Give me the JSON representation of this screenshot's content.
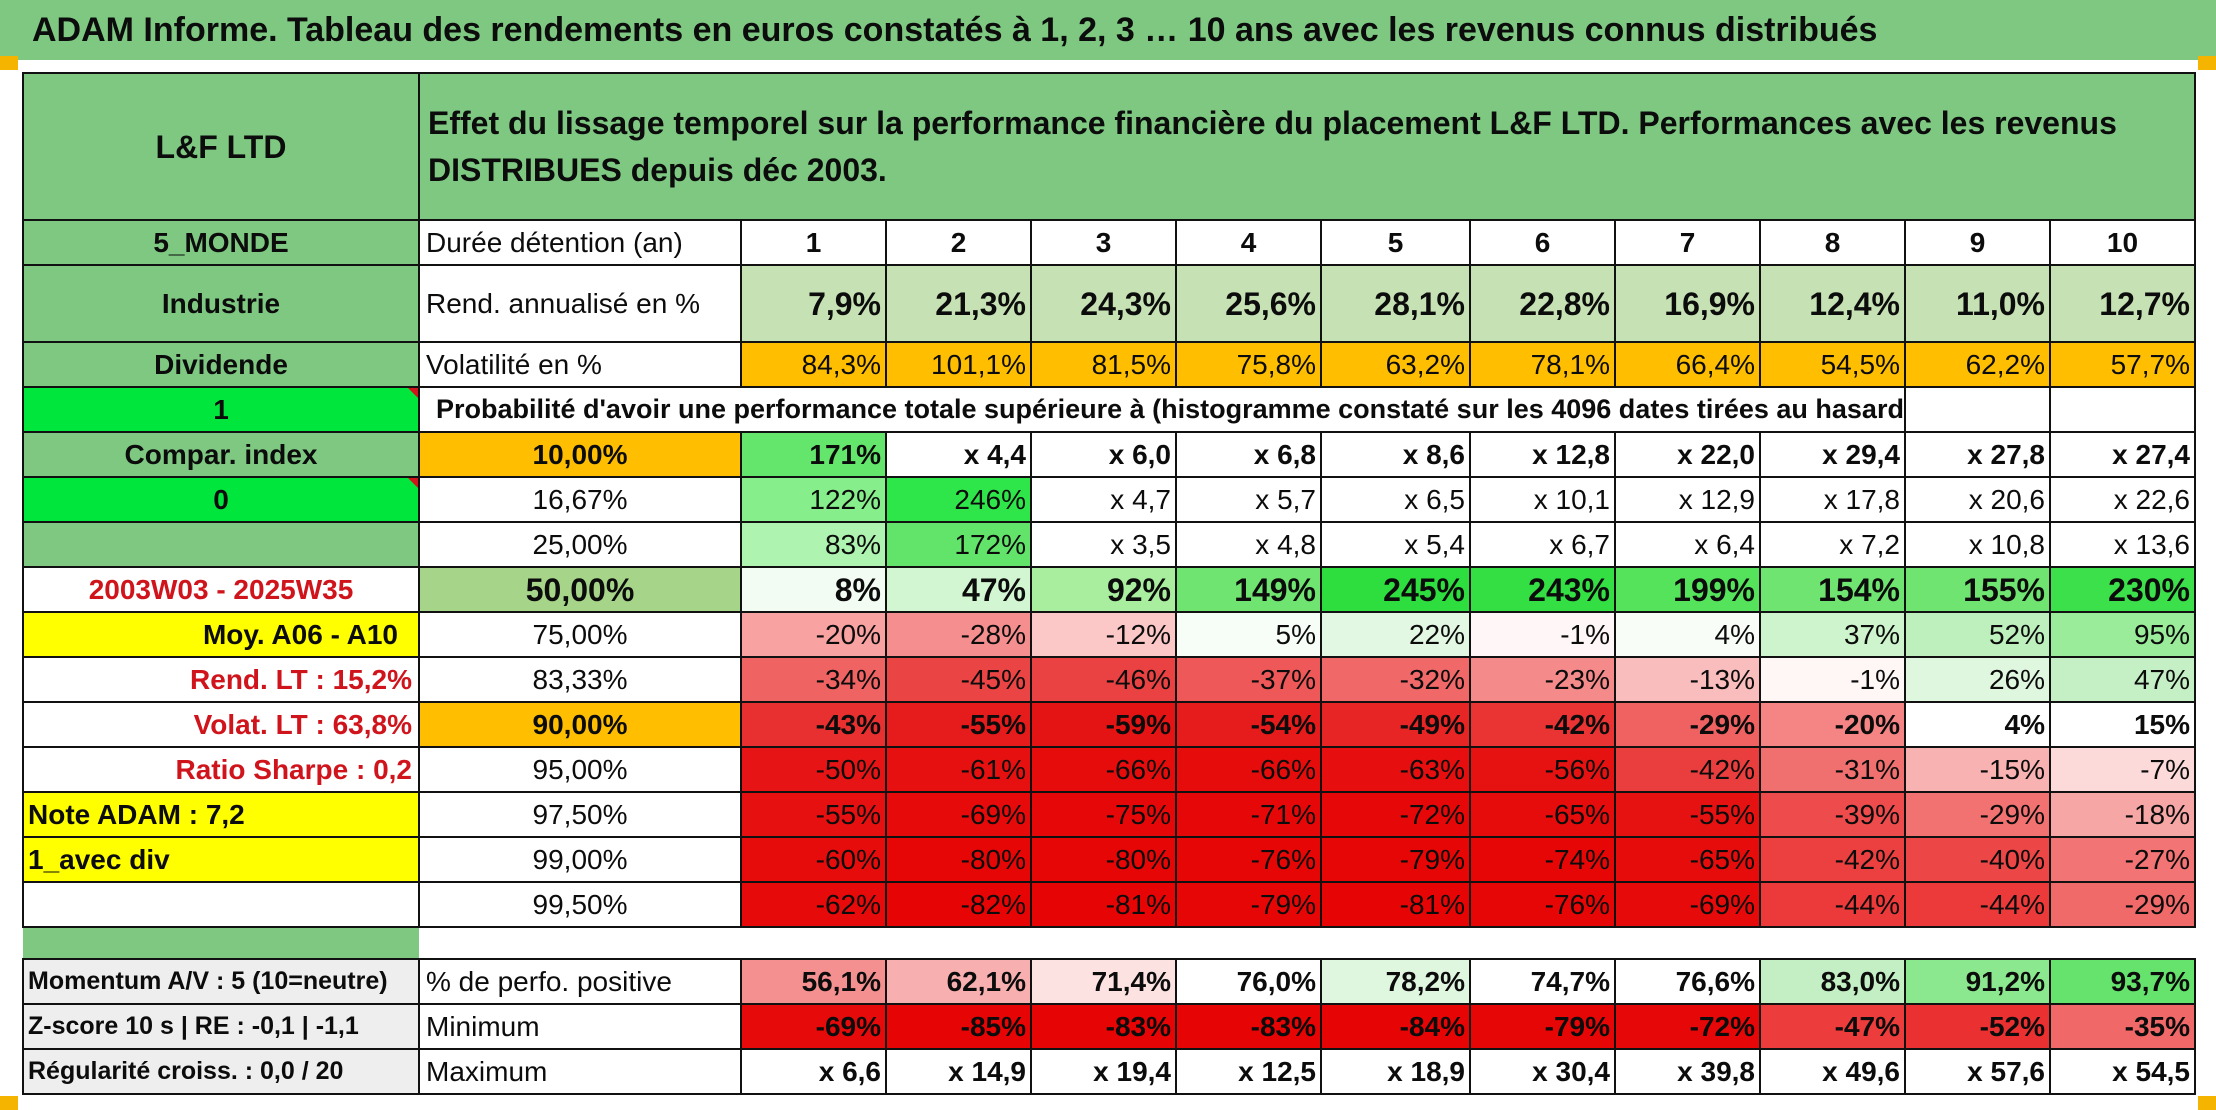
{
  "title": "ADAM Informe. Tableau des rendements en euros constatés à 1, 2, 3 … 10 ans avec les revenus connus distribués",
  "fund_name": "L&F LTD",
  "header_text": "Effet du lissage temporel sur la performance financière du placement L&F LTD. Performances avec les revenus DISTRIBUES depuis déc 2003.",
  "left": {
    "region": "5_MONDE",
    "sector": "Industrie",
    "dividend": "Dividende",
    "dividend_val": "1",
    "compar": "Compar. index",
    "compar_val": "0",
    "period": "2003W03 - 2025W35",
    "moy": "Moy. A06 - A10",
    "rend_lt": "Rend. LT :   15,2%",
    "volat_lt": "Volat. LT :   63,8%",
    "sharpe": "Ratio Sharpe :    0,2",
    "note": "Note ADAM : 7,2",
    "avec_div": "1_avec div",
    "momentum": "Momentum A/V : 5 (10=neutre)",
    "zscore": "Z-score 10 s | RE : -0,1 | -1,1",
    "regularite": "Régularité croiss. : 0,0 / 20"
  },
  "row_labels": {
    "duree": "Durée détention (an)",
    "rend": "Rend. annualisé en %",
    "vol": "Volatilité en %",
    "prob": "Probabilité d'avoir une performance totale supérieure à (histogramme constaté sur les 4096 dates tirées au hasard)",
    "pct_pos": "% de perfo. positive",
    "min": "Minimum",
    "max": "Maximum"
  },
  "years": [
    "1",
    "2",
    "3",
    "4",
    "5",
    "6",
    "7",
    "8",
    "9",
    "10"
  ],
  "rend": [
    "7,9%",
    "21,3%",
    "24,3%",
    "25,6%",
    "28,1%",
    "22,8%",
    "16,9%",
    "12,4%",
    "11,0%",
    "12,7%"
  ],
  "vol": [
    "84,3%",
    "101,1%",
    "81,5%",
    "75,8%",
    "63,2%",
    "78,1%",
    "66,4%",
    "54,5%",
    "62,2%",
    "57,7%"
  ],
  "vol_colors": [
    "#ffbf00",
    "#ffbf00",
    "#ffbf00",
    "#ffbf00",
    "#ffbf00",
    "#ffbf00",
    "#ffbf00",
    "#ffbf00",
    "#ffbf00",
    "#ffbf00"
  ],
  "rend_colors": [
    "#c6e2b4",
    "#c6e2b4",
    "#c6e2b4",
    "#c6e2b4",
    "#c6e2b4",
    "#c6e2b4",
    "#c6e2b4",
    "#c6e2b4",
    "#c6e2b4",
    "#c6e2b4"
  ],
  "quantile_rows": [
    {
      "label": "10,00%",
      "label_bg": "#ffbf00",
      "bold": true,
      "values": [
        "171%",
        "x 4,4",
        "x 6,0",
        "x 6,8",
        "x 8,6",
        "x 12,8",
        "x 22,0",
        "x 29,4",
        "x 27,8",
        "x 27,4"
      ],
      "colors": [
        "#63e66b",
        "#ffffff",
        "#ffffff",
        "#ffffff",
        "#ffffff",
        "#ffffff",
        "#ffffff",
        "#ffffff",
        "#ffffff",
        "#ffffff"
      ]
    },
    {
      "label": "16,67%",
      "label_bg": "#ffffff",
      "bold": false,
      "values": [
        "122%",
        "246%",
        "x 4,7",
        "x 5,7",
        "x 6,5",
        "x 10,1",
        "x 12,9",
        "x 17,8",
        "x 20,6",
        "x 22,6"
      ],
      "colors": [
        "#86ee8a",
        "#2ee64a",
        "#ffffff",
        "#ffffff",
        "#ffffff",
        "#ffffff",
        "#ffffff",
        "#ffffff",
        "#ffffff",
        "#ffffff"
      ]
    },
    {
      "label": "25,00%",
      "label_bg": "#ffffff",
      "bold": false,
      "values": [
        "83%",
        "172%",
        "x 3,5",
        "x 4,8",
        "x 5,4",
        "x 6,7",
        "x 6,4",
        "x 7,2",
        "x 10,8",
        "x 13,6"
      ],
      "colors": [
        "#aef3b0",
        "#62e46b",
        "#ffffff",
        "#ffffff",
        "#ffffff",
        "#ffffff",
        "#ffffff",
        "#ffffff",
        "#ffffff",
        "#ffffff"
      ]
    },
    {
      "label": "50,00%",
      "label_bg": "#a6d488",
      "bold": true,
      "big": true,
      "values": [
        "8%",
        "47%",
        "92%",
        "149%",
        "245%",
        "243%",
        "199%",
        "154%",
        "155%",
        "230%"
      ],
      "colors": [
        "#f3fcf3",
        "#d2f6d2",
        "#a8ee9e",
        "#6fe470",
        "#2ede3e",
        "#34df43",
        "#55e35c",
        "#6fe470",
        "#6fe470",
        "#3ce04a"
      ]
    },
    {
      "label": "75,00%",
      "label_bg": "#ffffff",
      "bold": false,
      "values": [
        "-20%",
        "-28%",
        "-12%",
        "5%",
        "22%",
        "-1%",
        "4%",
        "37%",
        "52%",
        "95%"
      ],
      "colors": [
        "#f8a2a2",
        "#f58e8e",
        "#fcc7c7",
        "#f7fdf7",
        "#e3f8e3",
        "#fff7f7",
        "#f8fdf8",
        "#cdf4cd",
        "#bdf0bd",
        "#9aeb9a"
      ]
    },
    {
      "label": "83,33%",
      "label_bg": "#ffffff",
      "bold": false,
      "values": [
        "-34%",
        "-45%",
        "-46%",
        "-37%",
        "-32%",
        "-23%",
        "-13%",
        "-1%",
        "26%",
        "47%"
      ],
      "colors": [
        "#f06363",
        "#ea4444",
        "#ea4242",
        "#ee5858",
        "#f06868",
        "#f58a8a",
        "#fabdbd",
        "#fff6f6",
        "#dff6df",
        "#c5f0c5"
      ]
    },
    {
      "label": "90,00%",
      "label_bg": "#ffbf00",
      "bold": true,
      "values": [
        "-43%",
        "-55%",
        "-59%",
        "-54%",
        "-49%",
        "-42%",
        "-29%",
        "-20%",
        "4%",
        "15%"
      ],
      "colors": [
        "#e93030",
        "#e61b1b",
        "#e51414",
        "#e61c1c",
        "#e72525",
        "#ea3333",
        "#f06262",
        "#f58585",
        "#ffffff",
        "#ffffff"
      ]
    },
    {
      "label": "95,00%",
      "label_bg": "#ffffff",
      "bold": false,
      "values": [
        "-50%",
        "-61%",
        "-66%",
        "-66%",
        "-63%",
        "-56%",
        "-42%",
        "-31%",
        "-15%",
        "-7%"
      ],
      "colors": [
        "#e61414",
        "#e61010",
        "#e60c0c",
        "#e60c0c",
        "#e60e0e",
        "#e61212",
        "#ea3e3e",
        "#f07070",
        "#f8b2b2",
        "#fddada"
      ]
    },
    {
      "label": "97,50%",
      "label_bg": "#ffffff",
      "bold": false,
      "values": [
        "-55%",
        "-69%",
        "-75%",
        "-71%",
        "-72%",
        "-65%",
        "-55%",
        "-39%",
        "-29%",
        "-18%"
      ],
      "colors": [
        "#e61010",
        "#e60a0a",
        "#e60808",
        "#e60808",
        "#e60808",
        "#e60c0c",
        "#e61212",
        "#ee4c4c",
        "#f27272",
        "#f7a6a6"
      ]
    },
    {
      "label": "99,00%",
      "label_bg": "#ffffff",
      "bold": false,
      "values": [
        "-60%",
        "-80%",
        "-80%",
        "-76%",
        "-79%",
        "-74%",
        "-65%",
        "-42%",
        "-40%",
        "-27%"
      ],
      "colors": [
        "#e60c0c",
        "#e60606",
        "#e60606",
        "#e60606",
        "#e60606",
        "#e60606",
        "#e60c0c",
        "#ec4040",
        "#ed4646",
        "#f27474"
      ]
    },
    {
      "label": "99,50%",
      "label_bg": "#ffffff",
      "bold": false,
      "values": [
        "-62%",
        "-82%",
        "-81%",
        "-79%",
        "-81%",
        "-76%",
        "-69%",
        "-44%",
        "-44%",
        "-29%"
      ],
      "colors": [
        "#e60a0a",
        "#e60404",
        "#e60404",
        "#e60606",
        "#e60404",
        "#e60606",
        "#e60a0a",
        "#ec3a3a",
        "#ec3a3a",
        "#f06a6a"
      ]
    }
  ],
  "pct_pos": [
    "56,1%",
    "62,1%",
    "71,4%",
    "76,0%",
    "78,2%",
    "74,7%",
    "76,6%",
    "83,0%",
    "91,2%",
    "93,7%"
  ],
  "pct_pos_colors": [
    "#f49090",
    "#f8afaf",
    "#fde2e2",
    "#ffffff",
    "#dff6df",
    "#ffffff",
    "#ffffff",
    "#c4efc4",
    "#8ce88e",
    "#66e36c"
  ],
  "min": [
    "-69%",
    "-85%",
    "-83%",
    "-83%",
    "-84%",
    "-79%",
    "-72%",
    "-47%",
    "-52%",
    "-35%"
  ],
  "min_colors": [
    "#e60a0a",
    "#e60404",
    "#e60404",
    "#e60404",
    "#e60404",
    "#e60606",
    "#e60808",
    "#ec3c3c",
    "#ea3030",
    "#f06868"
  ],
  "max": [
    "x 6,6",
    "x 14,9",
    "x 19,4",
    "x 12,5",
    "x 18,9",
    "x 30,4",
    "x 39,8",
    "x 49,6",
    "x 57,6",
    "x 54,5"
  ]
}
